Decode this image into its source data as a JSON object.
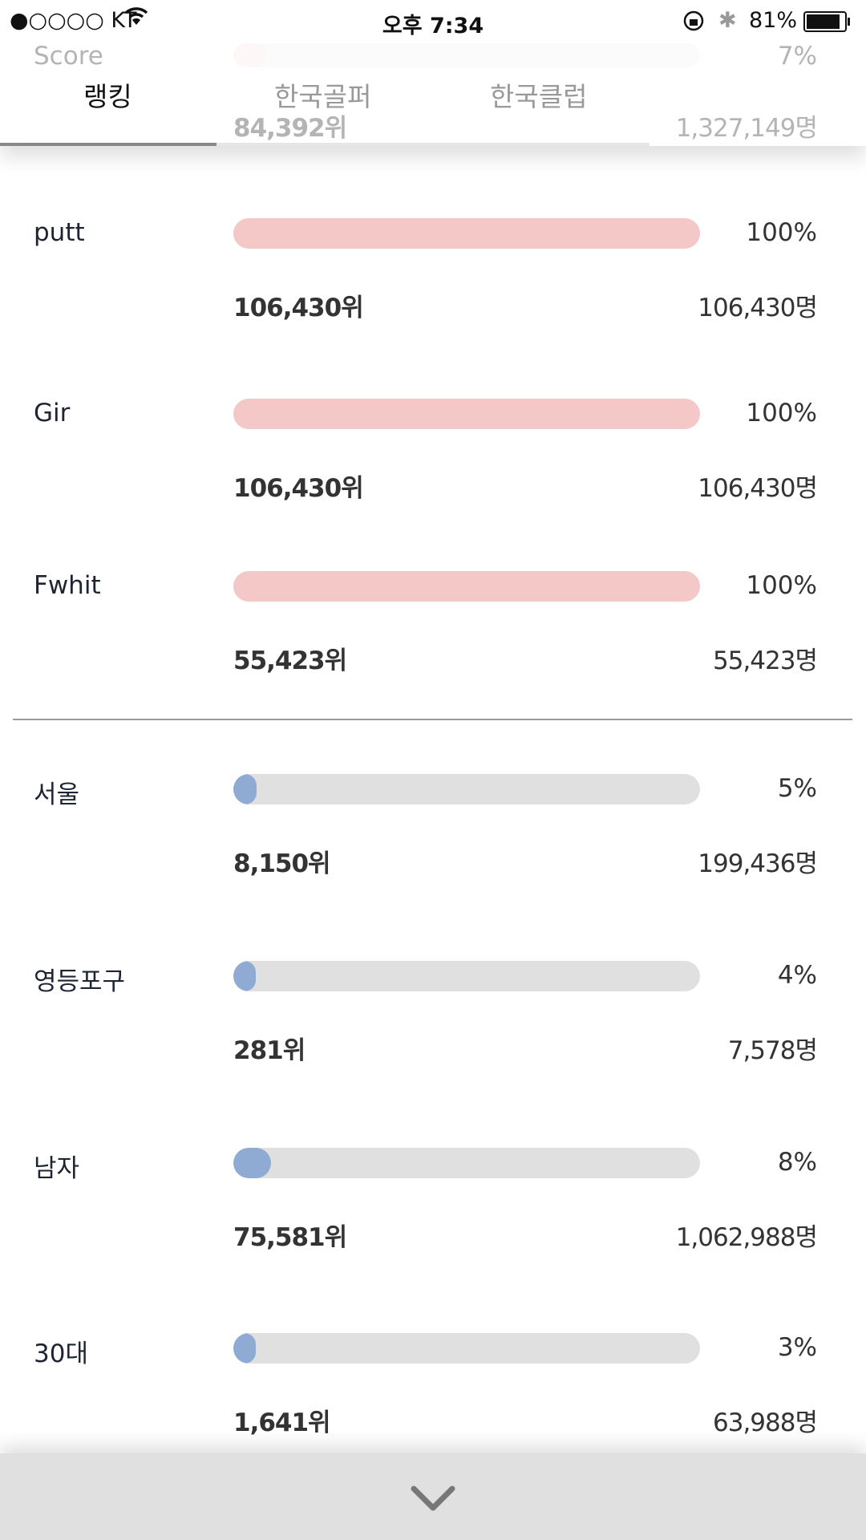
{
  "status_bar": {
    "carrier": "●○○○○ KT",
    "time": "오후 7:34",
    "battery": "81%"
  },
  "tabs": [
    {
      "label": "랭킹",
      "active": true
    },
    {
      "label": "한국골퍼",
      "active": false
    },
    {
      "label": "한국클럽",
      "active": false
    }
  ],
  "partial_row": {
    "label": "Score",
    "percent": "7%",
    "value": 7,
    "rank": "84,392위",
    "count": "1,327,149명"
  },
  "stat_rows": [
    {
      "label": "putt",
      "percent": "100%",
      "value": 100,
      "rank": "106,430위",
      "count": "106,430명"
    },
    {
      "label": "Gir",
      "percent": "100%",
      "value": 100,
      "rank": "106,430위",
      "count": "106,430명"
    },
    {
      "label": "Fwhit",
      "percent": "100%",
      "value": 100,
      "rank": "55,423위",
      "count": "55,423명"
    }
  ],
  "group_rows": [
    {
      "label": "서울",
      "percent": "5%",
      "value": 5,
      "rank": "8,150위",
      "count": "199,436명"
    },
    {
      "label": "영등포구",
      "percent": "4%",
      "value": 4,
      "rank": "281위",
      "count": "7,578명"
    },
    {
      "label": "남자",
      "percent": "8%",
      "value": 8,
      "rank": "75,581위",
      "count": "1,062,988명"
    },
    {
      "label": "30대",
      "percent": "3%",
      "value": 3,
      "rank": "1,641위",
      "count": "63,988명"
    }
  ],
  "colors": {
    "stat_fill": "#f5c8c8",
    "group_fill": "#8fabd4",
    "track": "#e0e0e0"
  },
  "bottom_icon": "chevron-down-icon"
}
